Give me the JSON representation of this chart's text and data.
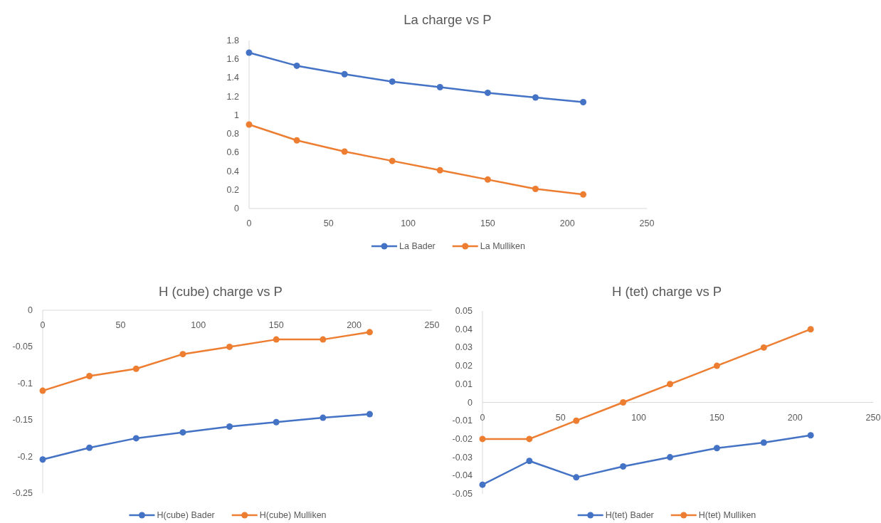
{
  "chart_data": [
    {
      "type": "line",
      "title": "La charge vs P",
      "x": [
        0,
        30,
        60,
        90,
        120,
        150,
        180,
        210
      ],
      "series": [
        {
          "name": "La Bader",
          "color": "#4472c4",
          "values": [
            1.67,
            1.53,
            1.44,
            1.36,
            1.3,
            1.24,
            1.19,
            1.14
          ]
        },
        {
          "name": "La Mulliken",
          "color": "#ed7d31",
          "values": [
            0.9,
            0.73,
            0.61,
            0.51,
            0.41,
            0.31,
            0.21,
            0.15
          ]
        }
      ],
      "xlim": [
        0,
        250
      ],
      "xticks": [
        0,
        50,
        100,
        150,
        200,
        250
      ],
      "ylim": [
        0,
        1.8
      ],
      "yticks": [
        0,
        0.2,
        0.4,
        0.6,
        0.8,
        1,
        1.2,
        1.4,
        1.6,
        1.8
      ],
      "legend": "bottom",
      "marker": "circle"
    },
    {
      "type": "line",
      "title": "H (cube) charge vs P",
      "x": [
        0,
        30,
        60,
        90,
        120,
        150,
        180,
        210
      ],
      "series": [
        {
          "name": "H(cube) Bader",
          "color": "#4472c4",
          "values": [
            -0.204,
            -0.188,
            -0.175,
            -0.167,
            -0.159,
            -0.153,
            -0.147,
            -0.142
          ]
        },
        {
          "name": "H(cube) Mulliken",
          "color": "#ed7d31",
          "values": [
            -0.11,
            -0.09,
            -0.08,
            -0.06,
            -0.05,
            -0.04,
            -0.04,
            -0.03
          ]
        }
      ],
      "xlim": [
        0,
        250
      ],
      "xticks": [
        0,
        50,
        100,
        150,
        200,
        250
      ],
      "ylim": [
        -0.25,
        0
      ],
      "yticks": [
        -0.25,
        -0.2,
        -0.15,
        -0.1,
        -0.05,
        0
      ],
      "legend": "bottom",
      "marker": "circle"
    },
    {
      "type": "line",
      "title": "H (tet) charge vs P",
      "x": [
        0,
        30,
        60,
        90,
        120,
        150,
        180,
        210
      ],
      "series": [
        {
          "name": "H(tet) Bader",
          "color": "#4472c4",
          "values": [
            -0.045,
            -0.032,
            -0.041,
            -0.035,
            -0.03,
            -0.025,
            -0.022,
            -0.018
          ]
        },
        {
          "name": "H(tet) Mulliken",
          "color": "#ed7d31",
          "values": [
            -0.02,
            -0.02,
            -0.01,
            0,
            0.01,
            0.02,
            0.03,
            0.04
          ]
        }
      ],
      "xlim": [
        0,
        250
      ],
      "xticks": [
        0,
        50,
        100,
        150,
        200,
        250
      ],
      "ylim": [
        -0.05,
        0.05
      ],
      "yticks": [
        -0.05,
        -0.04,
        -0.03,
        -0.02,
        -0.01,
        0,
        0.01,
        0.02,
        0.03,
        0.04,
        0.05
      ],
      "legend": "bottom",
      "marker": "circle"
    }
  ]
}
